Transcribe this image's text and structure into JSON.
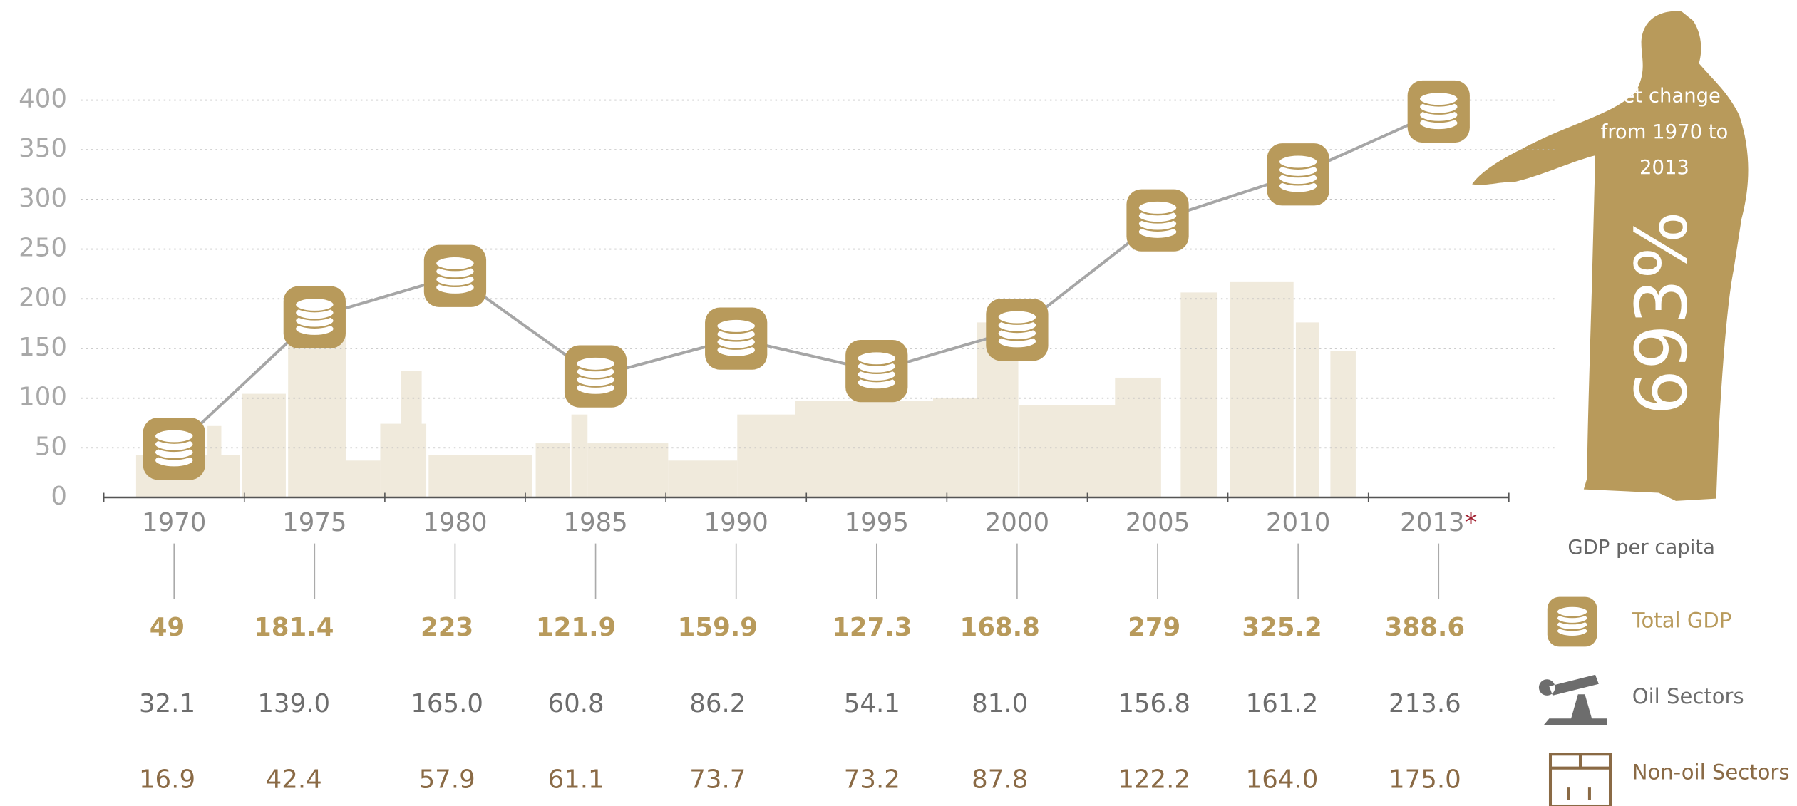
{
  "chart_data": {
    "type": "line",
    "categories": [
      "1970",
      "1975",
      "1980",
      "1985",
      "1990",
      "1995",
      "2000",
      "2005",
      "2010",
      "2013"
    ],
    "note_marker": "*",
    "ylim": [
      0,
      420
    ],
    "yticks": [
      0,
      50,
      100,
      150,
      200,
      250,
      300,
      350,
      400
    ],
    "grid": true,
    "legend_title": "GDP per capita",
    "series": [
      {
        "name": "Total GDP",
        "color": "#b89a5b",
        "values": [
          49,
          181.4,
          223,
          121.9,
          159.9,
          127.3,
          168.8,
          279,
          325.2,
          388.6
        ]
      },
      {
        "name": "Oil Sectors",
        "color": "#6d6d6d",
        "values": [
          32.1,
          139,
          165,
          60.8,
          86.2,
          54.1,
          81,
          156.8,
          161.2,
          213.6
        ],
        "value_labels": [
          "32.1",
          "139.0",
          "165.0",
          "60.8",
          "86.2",
          "54.1",
          "81.0",
          "156.8",
          "161.2",
          "213.6"
        ]
      },
      {
        "name": "Non-oil Sectors",
        "color": "#8a6a45",
        "values": [
          16.9,
          42.4,
          57.9,
          61.1,
          73.7,
          73.2,
          87.8,
          122.2,
          164,
          175
        ],
        "value_labels": [
          "16.9",
          "42.4",
          "57.9",
          "61.1",
          "73.7",
          "73.2",
          "87.8",
          "122.2",
          "164.0",
          "175.0"
        ]
      }
    ],
    "annotation": {
      "lines": [
        "Net change",
        "from 1970 to",
        "2013"
      ],
      "value": "693%"
    }
  }
}
